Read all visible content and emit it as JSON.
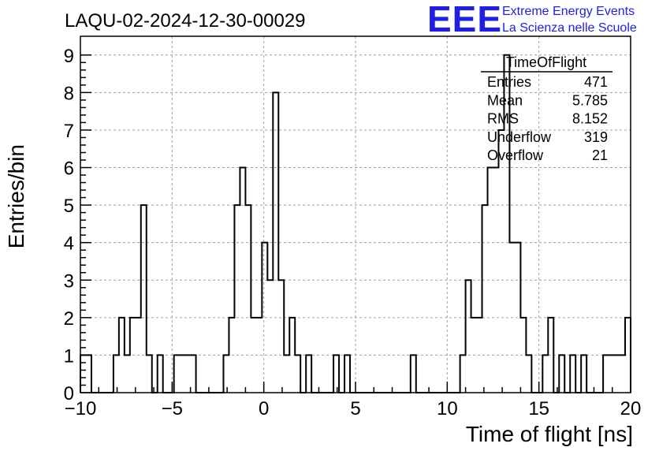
{
  "chart_data": {
    "type": "histogram",
    "title": "LAQU-02-2024-12-30-00029",
    "xlabel": "Time of flight [ns]",
    "ylabel": "Entries/bin",
    "xlim": [
      -10,
      20
    ],
    "ylim": [
      0,
      9.5
    ],
    "xticks": [
      "−10",
      "−5",
      "0",
      "5",
      "10",
      "15",
      "20"
    ],
    "yticks": [
      "0",
      "1",
      "2",
      "3",
      "4",
      "5",
      "6",
      "7",
      "8",
      "9"
    ],
    "grid": true,
    "bin_width": 0.3,
    "bins": [
      {
        "x0": -10.0,
        "count": 1
      },
      {
        "x0": -9.7,
        "count": 1
      },
      {
        "x0": -8.2,
        "count": 1
      },
      {
        "x0": -7.9,
        "count": 2
      },
      {
        "x0": -7.6,
        "count": 1
      },
      {
        "x0": -7.3,
        "count": 2
      },
      {
        "x0": -7.0,
        "count": 2
      },
      {
        "x0": -6.7,
        "count": 5
      },
      {
        "x0": -6.4,
        "count": 1
      },
      {
        "x0": -5.8,
        "count": 1
      },
      {
        "x0": -4.9,
        "count": 1
      },
      {
        "x0": -4.6,
        "count": 1
      },
      {
        "x0": -4.3,
        "count": 1
      },
      {
        "x0": -4.0,
        "count": 1
      },
      {
        "x0": -2.2,
        "count": 1
      },
      {
        "x0": -1.9,
        "count": 2
      },
      {
        "x0": -1.6,
        "count": 5
      },
      {
        "x0": -1.3,
        "count": 6
      },
      {
        "x0": -1.0,
        "count": 5
      },
      {
        "x0": -0.7,
        "count": 2
      },
      {
        "x0": -0.4,
        "count": 2
      },
      {
        "x0": -0.1,
        "count": 4
      },
      {
        "x0": 0.2,
        "count": 3
      },
      {
        "x0": 0.5,
        "count": 8
      },
      {
        "x0": 0.8,
        "count": 3
      },
      {
        "x0": 1.1,
        "count": 1
      },
      {
        "x0": 1.4,
        "count": 2
      },
      {
        "x0": 1.7,
        "count": 1
      },
      {
        "x0": 2.3,
        "count": 1
      },
      {
        "x0": 3.8,
        "count": 1
      },
      {
        "x0": 4.4,
        "count": 1
      },
      {
        "x0": 8.0,
        "count": 1
      },
      {
        "x0": 10.7,
        "count": 1
      },
      {
        "x0": 11.0,
        "count": 3
      },
      {
        "x0": 11.3,
        "count": 2
      },
      {
        "x0": 11.6,
        "count": 2
      },
      {
        "x0": 11.9,
        "count": 5
      },
      {
        "x0": 12.2,
        "count": 6
      },
      {
        "x0": 12.5,
        "count": 6
      },
      {
        "x0": 12.8,
        "count": 7
      },
      {
        "x0": 13.1,
        "count": 9
      },
      {
        "x0": 13.4,
        "count": 4
      },
      {
        "x0": 13.7,
        "count": 4
      },
      {
        "x0": 14.0,
        "count": 2
      },
      {
        "x0": 14.3,
        "count": 1
      },
      {
        "x0": 15.2,
        "count": 1
      },
      {
        "x0": 15.5,
        "count": 2
      },
      {
        "x0": 16.1,
        "count": 1
      },
      {
        "x0": 16.7,
        "count": 1
      },
      {
        "x0": 17.3,
        "count": 1
      },
      {
        "x0": 18.5,
        "count": 1
      },
      {
        "x0": 18.8,
        "count": 1
      },
      {
        "x0": 19.1,
        "count": 1
      },
      {
        "x0": 19.4,
        "count": 1
      },
      {
        "x0": 19.7,
        "count": 2
      }
    ],
    "stats": {
      "name": "TimeOfFlight",
      "rows": [
        {
          "label": "Entries",
          "value": "471"
        },
        {
          "label": "Mean",
          "value": "5.785"
        },
        {
          "label": "RMS",
          "value": "8.152"
        },
        {
          "label": "Underflow",
          "value": "319"
        },
        {
          "label": "Overflow",
          "value": "21"
        }
      ]
    }
  },
  "logo": {
    "mark": "EEE",
    "line1": "Extreme Energy Events",
    "line2": "La Scienza nelle Scuole",
    "color": "#1f1fe6"
  }
}
